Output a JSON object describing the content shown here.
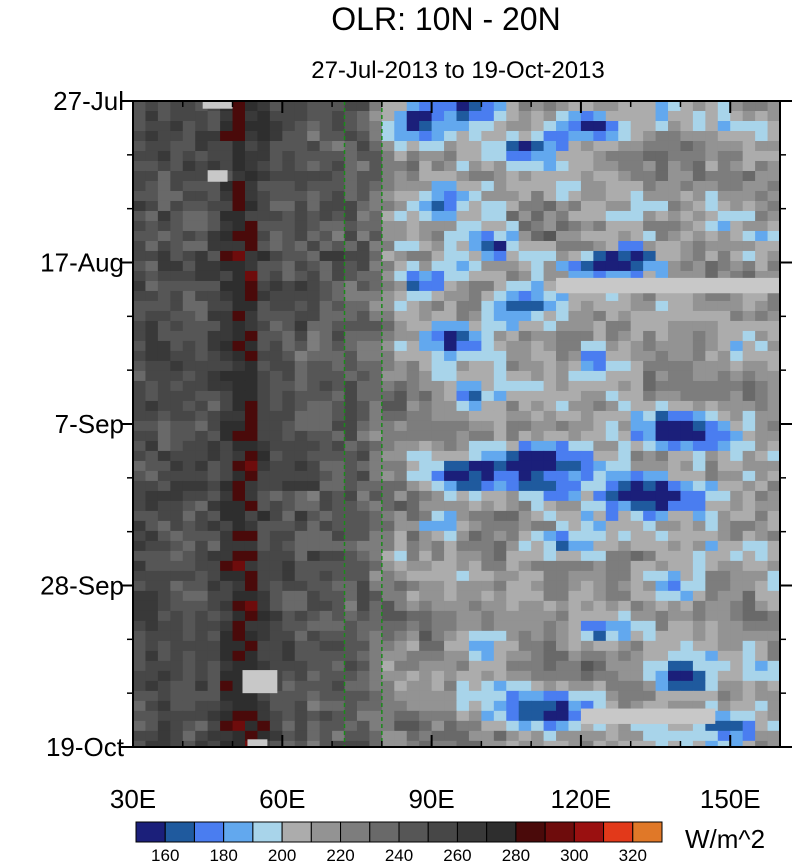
{
  "chart_data": {
    "type": "heatmap",
    "title": "OLR: 10N - 20N",
    "subtitle": "27-Jul-2013 to 19-Oct-2013",
    "x_axis": {
      "range": [
        30,
        160
      ],
      "ticks": [
        {
          "value": 30,
          "label": "30E"
        },
        {
          "value": 60,
          "label": "60E"
        },
        {
          "value": 90,
          "label": "90E"
        },
        {
          "value": 120,
          "label": "120E"
        },
        {
          "value": 150,
          "label": "150E"
        }
      ]
    },
    "y_axis": {
      "range_days": [
        0,
        84
      ],
      "direction": "time increases downward",
      "ticks": [
        {
          "day": 0,
          "label": "27-Jul"
        },
        {
          "day": 21,
          "label": "17-Aug"
        },
        {
          "day": 42,
          "label": "7-Sep"
        },
        {
          "day": 63,
          "label": "28-Sep"
        },
        {
          "day": 84,
          "label": "19-Oct"
        }
      ]
    },
    "reference_lines": [
      {
        "lon": 72.5,
        "color": "#1a8a1a",
        "style": "dashed"
      },
      {
        "lon": 80,
        "color": "#1a8a1a",
        "style": "dashed"
      }
    ],
    "colorbar": {
      "units": "W/m^2",
      "levels": [
        160,
        170,
        180,
        190,
        200,
        210,
        220,
        230,
        240,
        250,
        260,
        270,
        280,
        290,
        300,
        310,
        320
      ],
      "labels": [
        "160",
        "180",
        "200",
        "220",
        "240",
        "260",
        "280",
        "300",
        "320"
      ],
      "colors": [
        "#1b1f7a",
        "#1f5a9e",
        "#4a7df0",
        "#62a8ee",
        "#a8d4ea",
        "#acacac",
        "#939393",
        "#7d7d7d",
        "#696969",
        "#565656",
        "#474747",
        "#393939",
        "#2e2e2e",
        "#4a0a0a",
        "#6e0c0c",
        "#9a1010",
        "#e2391a",
        "#e07828"
      ]
    },
    "missing_data": [
      {
        "lon_range": [
          44,
          50
        ],
        "days": [
          0,
          1
        ]
      },
      {
        "lon_range": [
          45,
          49
        ],
        "days": [
          9,
          10.5
        ]
      },
      {
        "lon_range": [
          115,
          160
        ],
        "days": [
          23,
          25
        ]
      },
      {
        "lon_range": [
          52,
          59
        ],
        "days": [
          74,
          77
        ]
      },
      {
        "lon_range": [
          120,
          147
        ],
        "days": [
          79,
          81
        ]
      },
      {
        "lon_range": [
          53,
          57
        ],
        "days": [
          83,
          84
        ]
      }
    ],
    "features": {
      "west_band_lon": [
        48,
        58
      ],
      "west_band_olr_range": [
        280,
        320
      ],
      "convection_boundary_lon": [
        73,
        80
      ],
      "east_min_olr": 160
    }
  }
}
